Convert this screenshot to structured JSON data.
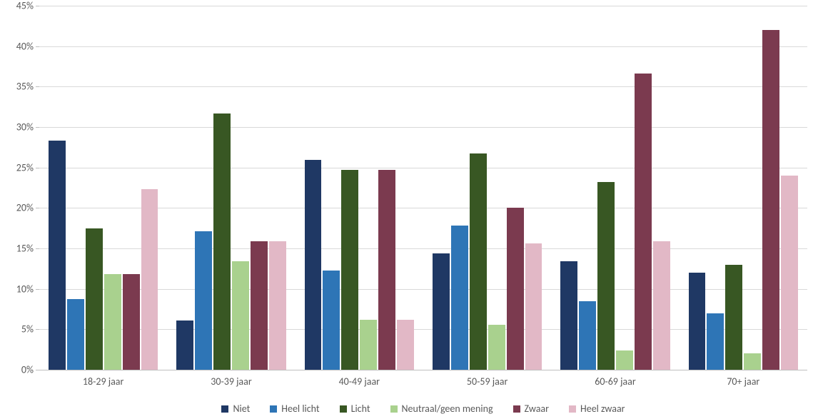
{
  "chart": {
    "type": "bar-grouped",
    "y": {
      "min": 0,
      "max": 45,
      "tick_step": 5,
      "ticks": [
        "0%",
        "5%",
        "10%",
        "15%",
        "20%",
        "25%",
        "30%",
        "35%",
        "40%",
        "45%"
      ],
      "label_fontsize": 14,
      "label_color": "#595959"
    },
    "gridline_color": "#d9d9d9",
    "axis_color": "#bfbfbf",
    "background_color": "#ffffff",
    "categories": [
      "18-29 jaar",
      "30-39 jaar",
      "40-49 jaar",
      "50-59 jaar",
      "60-69 jaar",
      "70+ jaar"
    ],
    "series": [
      {
        "name": "Niet",
        "color": "#1f3864"
      },
      {
        "name": "Heel licht",
        "color": "#2e75b6"
      },
      {
        "name": "Licht",
        "color": "#385723"
      },
      {
        "name": "Neutraal/geen mening",
        "color": "#a9d18e"
      },
      {
        "name": "Zwaar",
        "color": "#7b3a4f"
      },
      {
        "name": "Heel zwaar",
        "color": "#e2b8c6"
      }
    ],
    "values": [
      [
        28.3,
        8.7,
        17.5,
        11.8,
        11.8,
        22.3
      ],
      [
        6.1,
        17.1,
        31.7,
        13.4,
        15.9,
        15.9
      ],
      [
        25.9,
        12.3,
        24.7,
        6.2,
        24.7,
        6.2
      ],
      [
        14.4,
        17.8,
        26.7,
        5.6,
        20.0,
        15.6
      ],
      [
        13.4,
        8.5,
        23.2,
        2.4,
        36.6,
        15.9
      ],
      [
        12.0,
        7.0,
        13.0,
        2.0,
        42.0,
        24.0
      ]
    ],
    "legend_fontsize": 14
  }
}
